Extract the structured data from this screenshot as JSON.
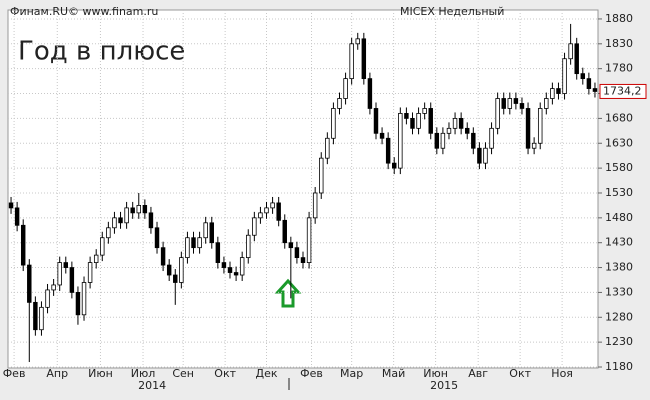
{
  "chart_data": {
    "type": "candlestick",
    "source": "Финам.RU©  www.finam.ru",
    "title": "MICEX Недельный",
    "annotation": "Год в плюсе",
    "x": [
      0,
      1,
      2,
      3,
      4,
      5,
      6,
      7,
      8,
      9,
      10,
      11,
      12,
      13,
      14,
      15,
      16,
      17,
      18,
      19,
      20,
      21,
      22,
      23,
      24,
      25,
      26,
      27,
      28,
      29,
      30,
      31,
      32,
      33,
      34,
      35,
      36,
      37,
      38,
      39,
      40,
      41,
      42,
      43,
      44,
      45,
      46,
      47,
      48,
      49,
      50,
      51,
      52,
      53,
      54,
      55,
      56,
      57,
      58,
      59,
      60,
      61,
      62,
      63,
      64,
      65,
      66,
      67,
      68,
      69,
      70,
      71,
      72,
      73,
      74,
      75,
      76,
      77,
      78,
      79,
      80,
      81,
      82,
      83,
      84,
      85,
      86,
      87,
      88,
      89,
      90,
      91,
      92,
      93,
      94,
      95,
      96
    ],
    "open": [
      1510,
      1500,
      1465,
      1385,
      1310,
      1255,
      1300,
      1335,
      1345,
      1390,
      1380,
      1330,
      1285,
      1350,
      1390,
      1405,
      1440,
      1460,
      1480,
      1470,
      1500,
      1490,
      1505,
      1490,
      1460,
      1420,
      1385,
      1365,
      1350,
      1400,
      1440,
      1420,
      1440,
      1470,
      1430,
      1390,
      1380,
      1370,
      1365,
      1400,
      1445,
      1480,
      1490,
      1500,
      1510,
      1475,
      1430,
      1420,
      1400,
      1390,
      1480,
      1530,
      1600,
      1640,
      1700,
      1720,
      1760,
      1830,
      1840,
      1760,
      1700,
      1650,
      1640,
      1590,
      1580,
      1690,
      1680,
      1660,
      1690,
      1700,
      1650,
      1620,
      1650,
      1660,
      1680,
      1660,
      1650,
      1620,
      1590,
      1620,
      1660,
      1720,
      1700,
      1720,
      1710,
      1700,
      1620,
      1630,
      1700,
      1720,
      1740,
      1730,
      1800,
      1830,
      1770,
      1760,
      1740
    ],
    "high": [
      1522,
      1512,
      1477,
      1397,
      1322,
      1312,
      1347,
      1357,
      1402,
      1402,
      1392,
      1342,
      1362,
      1402,
      1417,
      1452,
      1472,
      1492,
      1492,
      1512,
      1512,
      1530,
      1517,
      1502,
      1472,
      1432,
      1397,
      1377,
      1412,
      1452,
      1452,
      1452,
      1482,
      1482,
      1442,
      1402,
      1392,
      1382,
      1412,
      1457,
      1492,
      1502,
      1512,
      1522,
      1522,
      1487,
      1442,
      1432,
      1412,
      1492,
      1542,
      1612,
      1652,
      1712,
      1732,
      1772,
      1842,
      1852,
      1852,
      1772,
      1712,
      1662,
      1652,
      1602,
      1702,
      1702,
      1692,
      1702,
      1712,
      1712,
      1662,
      1662,
      1672,
      1692,
      1692,
      1672,
      1662,
      1632,
      1632,
      1672,
      1732,
      1732,
      1732,
      1732,
      1722,
      1712,
      1642,
      1712,
      1732,
      1752,
      1752,
      1812,
      1870,
      1842,
      1782,
      1772,
      1752
    ],
    "low": [
      1488,
      1453,
      1373,
      1190,
      1243,
      1243,
      1288,
      1323,
      1333,
      1368,
      1318,
      1265,
      1273,
      1338,
      1378,
      1393,
      1428,
      1448,
      1458,
      1458,
      1478,
      1478,
      1478,
      1448,
      1408,
      1373,
      1353,
      1305,
      1338,
      1388,
      1408,
      1408,
      1428,
      1418,
      1378,
      1368,
      1358,
      1353,
      1353,
      1388,
      1433,
      1468,
      1478,
      1488,
      1463,
      1418,
      1318,
      1388,
      1378,
      1378,
      1468,
      1518,
      1588,
      1628,
      1688,
      1708,
      1748,
      1818,
      1748,
      1688,
      1638,
      1628,
      1578,
      1568,
      1568,
      1668,
      1648,
      1648,
      1678,
      1638,
      1608,
      1608,
      1638,
      1648,
      1648,
      1638,
      1608,
      1578,
      1578,
      1608,
      1648,
      1688,
      1688,
      1698,
      1688,
      1608,
      1608,
      1618,
      1688,
      1708,
      1718,
      1718,
      1788,
      1758,
      1748,
      1728,
      1722
    ],
    "close": [
      1500,
      1465,
      1385,
      1310,
      1255,
      1300,
      1335,
      1345,
      1390,
      1380,
      1330,
      1285,
      1350,
      1390,
      1405,
      1440,
      1460,
      1480,
      1470,
      1500,
      1490,
      1505,
      1490,
      1460,
      1420,
      1385,
      1365,
      1350,
      1400,
      1440,
      1420,
      1440,
      1470,
      1430,
      1390,
      1380,
      1370,
      1365,
      1400,
      1445,
      1480,
      1490,
      1500,
      1510,
      1475,
      1430,
      1420,
      1400,
      1390,
      1480,
      1530,
      1600,
      1640,
      1700,
      1720,
      1760,
      1830,
      1840,
      1760,
      1700,
      1650,
      1640,
      1590,
      1580,
      1690,
      1680,
      1660,
      1690,
      1700,
      1650,
      1620,
      1650,
      1660,
      1680,
      1660,
      1650,
      1620,
      1590,
      1620,
      1660,
      1720,
      1700,
      1720,
      1710,
      1700,
      1620,
      1630,
      1700,
      1720,
      1740,
      1730,
      1800,
      1830,
      1770,
      1760,
      1740,
      1734.2
    ],
    "up_color": "#ffffff",
    "down_color": "#000000",
    "annotation_color": "#1a9a2a",
    "last_price": {
      "value": 1734.2,
      "label": "1734,2"
    },
    "xlim": [
      -0.5,
      96.5
    ],
    "xticks": [
      {
        "value": 0.5,
        "label": "Фев"
      },
      {
        "value": 7.6,
        "label": "Апр"
      },
      {
        "value": 14.7,
        "label": "Июн"
      },
      {
        "value": 21.7,
        "label": "Июл"
      },
      {
        "value": 28.3,
        "label": "Сен"
      },
      {
        "value": 35.2,
        "label": "Окт"
      },
      {
        "value": 42,
        "label": "Дек"
      },
      {
        "value": 49.4,
        "label": "Фев"
      },
      {
        "value": 56,
        "label": "Мар"
      },
      {
        "value": 62.9,
        "label": "Май"
      },
      {
        "value": 69.8,
        "label": "Июн"
      },
      {
        "value": 76.8,
        "label": "Авг"
      },
      {
        "value": 83.7,
        "label": "Окт"
      },
      {
        "value": 90.6,
        "label": "Ноя"
      }
    ],
    "year_ticks": [
      {
        "value": 23.2,
        "label": "2014"
      },
      {
        "value": 71.2,
        "label": "2015"
      }
    ],
    "ylim": [
      1178,
      1898
    ],
    "yticks": [
      1180,
      1230,
      1280,
      1330,
      1380,
      1430,
      1480,
      1530,
      1580,
      1630,
      1680,
      1730,
      1780,
      1830,
      1880
    ],
    "grid": true
  }
}
